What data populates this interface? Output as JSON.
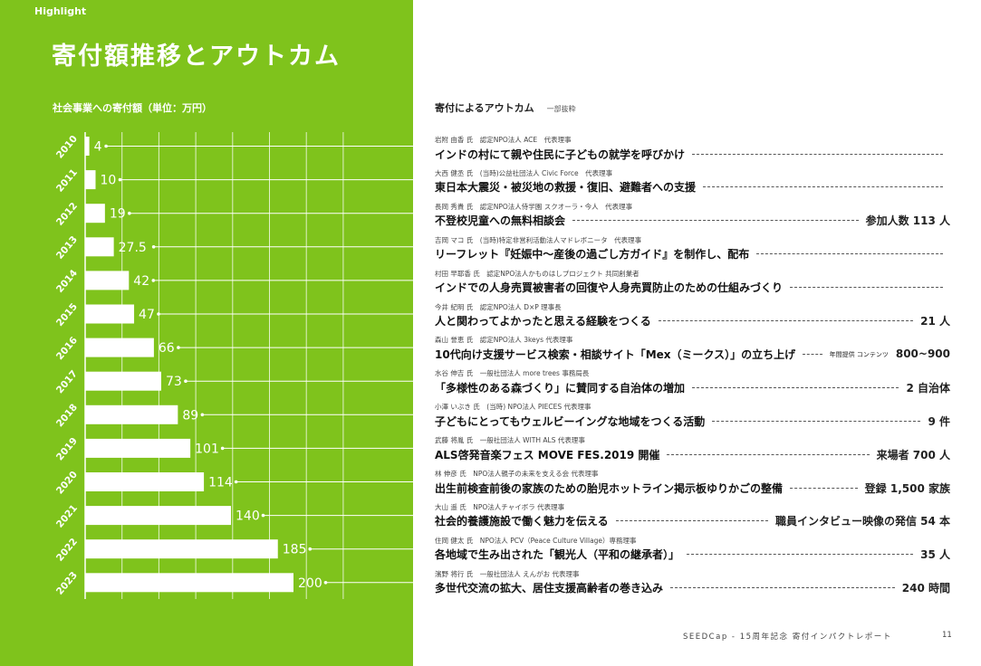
{
  "page": {
    "section_label": "Highlight",
    "title": "寄付額推移とアウトカム",
    "footer": "SEEDCap - 15周年記念 寄付インパクトレポート",
    "page_number": "11"
  },
  "colors": {
    "left_bg": "#7fc31c",
    "bar": "#ffffff",
    "text_dark": "#222222"
  },
  "chart_data": {
    "type": "bar",
    "orientation": "horizontal",
    "title": "社会事業への寄付額（単位：万円）",
    "categories": [
      "2010",
      "2011",
      "2012",
      "2013",
      "2014",
      "2015",
      "2016",
      "2017",
      "2018",
      "2019",
      "2020",
      "2021",
      "2022",
      "2023"
    ],
    "values": [
      4,
      10,
      19,
      27.5,
      42,
      47,
      66,
      73,
      89,
      101,
      114,
      140,
      185,
      200
    ],
    "value_labels": [
      "4",
      "10",
      "19",
      "27.5",
      "42",
      "47",
      "66",
      "73",
      "89",
      "101",
      "114",
      "140",
      "185",
      "200"
    ],
    "xlim": [
      0,
      200
    ],
    "grid": true
  },
  "outcomes": {
    "header": "寄付によるアウトカム",
    "subheader": "一部抜粋",
    "items": [
      {
        "person": "岩附 由香 氏　認定NPO法人 ACE　代表理事",
        "outcome": "インドの村にて親や住民に子どもの就学を呼びかけ",
        "value": "",
        "value_label": ""
      },
      {
        "person": "大西 健丞 氏　(当時)公益社団法人 Civic Force　代表理事",
        "outcome": "東日本大震災・被災地の救援・復旧、避難者への支援",
        "value": "",
        "value_label": ""
      },
      {
        "person": "長岡 秀貴 氏　認定NPO法人侍学園 スクオーラ・今人　代表理事",
        "outcome": "不登校児童への無料相談会",
        "value": "参加人数  113 人",
        "value_label": ""
      },
      {
        "person": "吉岡 マコ 氏　(当時)特定非営利活動法人マドレボニータ　代表理事",
        "outcome": "リーフレット『妊娠中〜産後の過ごし方ガイド』を制作し、配布",
        "value": "",
        "value_label": ""
      },
      {
        "person": "村田 早耶香 氏　認定NPO法人かものはしプロジェクト 共同創業者",
        "outcome": "インドでの人身売買被害者の回復や人身売買防止のための仕組みづくり",
        "value": "",
        "value_label": ""
      },
      {
        "person": "今井 紀明 氏　認定NPO法人 D×P 理事長",
        "outcome": "人と関わってよかったと思える経験をつくる",
        "value": "21 人",
        "value_label": ""
      },
      {
        "person": "森山 誉恵 氏　認定NPO法人 3keys 代表理事",
        "outcome": "10代向け支援サービス検索・相談サイト「Mex（ミークス）」の立ち上げ",
        "value": "800~900",
        "value_label": "年間提供 コンテンツ"
      },
      {
        "person": "水谷 伸吉 氏　一般社団法人 more trees 事務局長",
        "outcome": "「多様性のある森づくり」に賛同する自治体の増加",
        "value": "2 自治体",
        "value_label": ""
      },
      {
        "person": "小澤 いぶき 氏　(当時) NPO法人 PIECES 代表理事",
        "outcome": "子どもにとってもウェルビーイングな地域をつくる活動",
        "value": "9 件",
        "value_label": ""
      },
      {
        "person": "武藤 将胤 氏　一般社団法人 WITH ALS 代表理事",
        "outcome": "ALS啓発音楽フェス MOVE FES.2019 開催",
        "value": "来場者  700 人",
        "value_label": ""
      },
      {
        "person": "林 伸彦 氏　NPO法人親子の未来を支える会 代表理事",
        "outcome": "出生前検査前後の家族のための胎児ホットライン掲示板ゆりかごの整備",
        "value": "登録  1,500 家族",
        "value_label": ""
      },
      {
        "person": "大山 遥 氏　NPO法人チャイボラ 代表理事",
        "outcome": "社会的養護施設で働く魅力を伝える",
        "value": "職員インタビュー映像の発信  54 本",
        "value_label": ""
      },
      {
        "person": "住岡 健太 氏　NPO法人 PCV（Peace Culture Village）専務理事",
        "outcome": "各地域で生み出された「観光人（平和の継承者）」",
        "value": "35 人",
        "value_label": ""
      },
      {
        "person": "濱野 将行 氏　一般社団法人 えんがお 代表理事",
        "outcome": "多世代交流の拡大、居住支援高齢者の巻き込み",
        "value": "240 時間",
        "value_label": ""
      }
    ]
  }
}
